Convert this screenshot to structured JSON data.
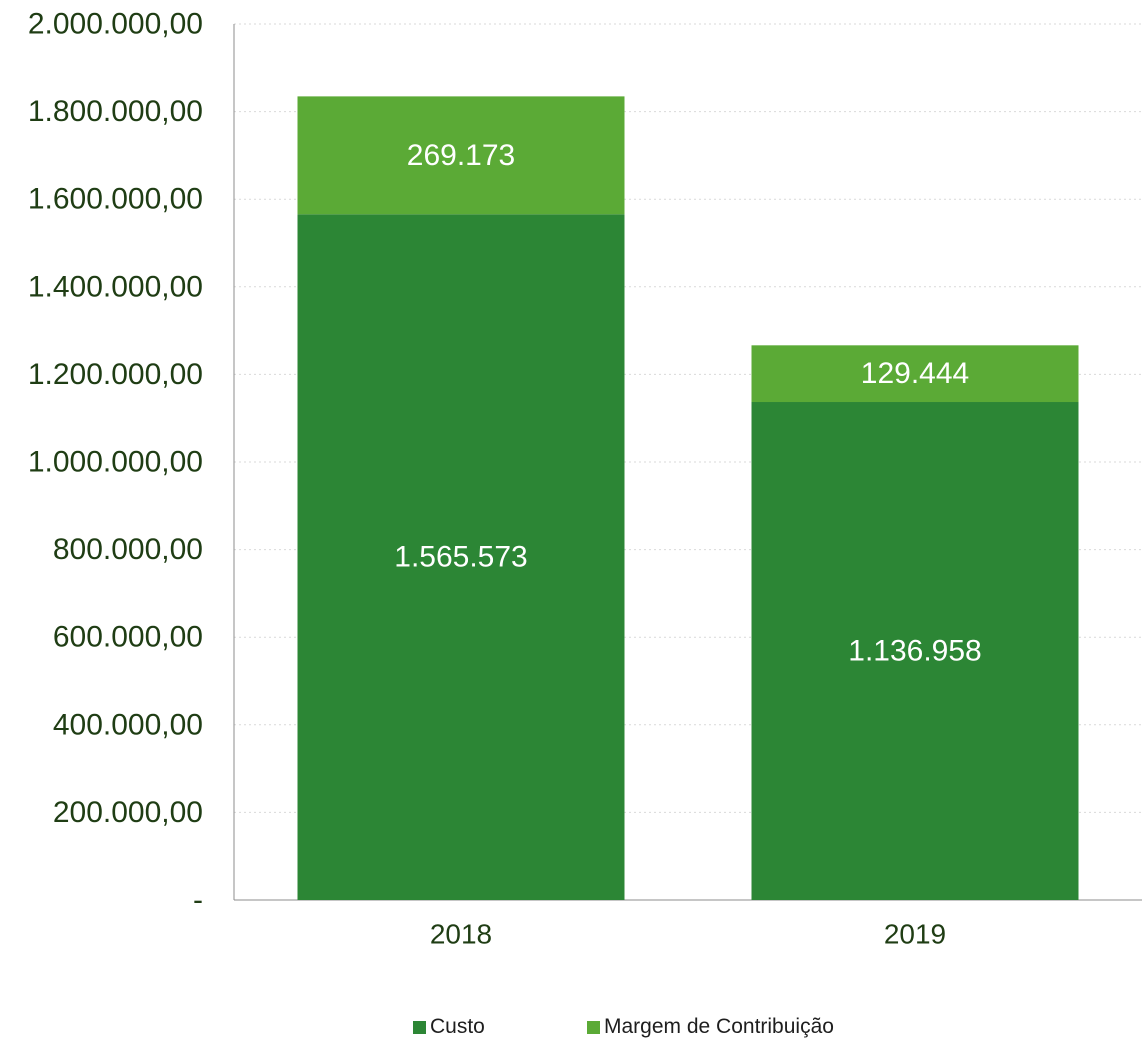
{
  "chart_data": {
    "type": "bar",
    "stacked": true,
    "title": "",
    "xlabel": "",
    "ylabel": "",
    "categories": [
      "2018",
      "2019"
    ],
    "series": [
      {
        "name": "Custo",
        "values": [
          1565573,
          1136958
        ],
        "labels": [
          "1.565.573",
          "1.136.958"
        ],
        "color": "#2c8635"
      },
      {
        "name": "Margem de Contribuição",
        "values": [
          269173,
          129444
        ],
        "labels": [
          "269.173",
          "129.444"
        ],
        "color": "#5baa36"
      }
    ],
    "ylim": [
      0,
      2000000
    ],
    "yticks": [
      0,
      200000,
      400000,
      600000,
      800000,
      1000000,
      1200000,
      1400000,
      1600000,
      1800000,
      2000000
    ],
    "ytick_labels": [
      "-",
      "200.000,00",
      "400.000,00",
      "600.000,00",
      "800.000,00",
      "1.000.000,00",
      "1.200.000,00",
      "1.400.000,00",
      "1.600.000,00",
      "1.800.000,00",
      "2.000.000,00"
    ],
    "grid": true,
    "legend_position": "bottom",
    "axis_text_color": "#1f3d14"
  }
}
